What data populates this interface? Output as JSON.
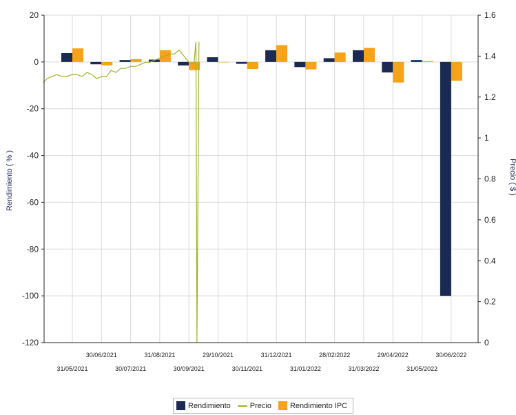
{
  "chart_data": {
    "type": "bar",
    "categories": [
      "31/05/2021",
      "30/06/2021",
      "30/07/2021",
      "31/08/2021",
      "30/09/2021",
      "29/10/2021",
      "30/11/2021",
      "31/12/2021",
      "31/01/2022",
      "28/02/2022",
      "31/03/2022",
      "29/04/2022",
      "31/05/2022",
      "30/06/2022"
    ],
    "series": [
      {
        "name": "Rendimiento",
        "axis": "left",
        "color": "#1b2a52",
        "values": [
          3.8,
          -1.0,
          0.8,
          1.0,
          -1.5,
          2.0,
          -0.8,
          5.0,
          -2.2,
          1.6,
          5.0,
          -4.5,
          0.8,
          -100
        ]
      },
      {
        "name": "Rendimiento IPC",
        "axis": "left",
        "color": "#f7a21b",
        "values": [
          5.8,
          -1.5,
          1.2,
          5.0,
          -3.5,
          -0.2,
          -3.0,
          7.2,
          -3.2,
          4.0,
          6.0,
          -8.8,
          0.4,
          -8.0
        ]
      },
      {
        "name": "Precio",
        "type": "line",
        "axis": "right",
        "color": "#9bb524",
        "x": [
          "01/05/2021",
          "05/05/2021",
          "10/05/2021",
          "15/05/2021",
          "20/05/2021",
          "25/05/2021",
          "31/05/2021",
          "05/06/2021",
          "10/06/2021",
          "15/06/2021",
          "20/06/2021",
          "25/06/2021",
          "30/06/2021",
          "05/07/2021",
          "10/07/2021",
          "15/07/2021",
          "20/07/2021",
          "25/07/2021",
          "30/07/2021",
          "05/08/2021",
          "10/08/2021",
          "15/08/2021",
          "20/08/2021",
          "25/08/2021",
          "31/08/2021",
          "05/09/2021",
          "10/09/2021",
          "15/09/2021",
          "20/09/2021",
          "25/09/2021",
          "30/09/2021",
          "05/10/2021",
          "07/10/2021",
          "08/10/2021",
          "10/10/2021"
        ],
        "values": [
          1.27,
          1.29,
          1.3,
          1.31,
          1.3,
          1.3,
          1.31,
          1.31,
          1.3,
          1.32,
          1.31,
          1.29,
          1.3,
          1.3,
          1.33,
          1.32,
          1.34,
          1.34,
          1.35,
          1.35,
          1.36,
          1.37,
          1.37,
          1.38,
          1.39,
          1.4,
          1.41,
          1.41,
          1.43,
          1.4,
          1.37,
          1.36,
          1.47,
          0.0,
          1.47
        ]
      }
    ],
    "left_axis": {
      "label": "Rendimiento  ( % )",
      "ylim": [
        -120,
        20
      ],
      "ticks": [
        20,
        0,
        -20,
        -40,
        -60,
        -80,
        -100,
        -120
      ]
    },
    "right_axis": {
      "label": "Precio  ( $ )",
      "ylim": [
        0,
        1.6
      ],
      "ticks": [
        "1.6",
        "1.4",
        "1.2",
        "1",
        "0.8",
        "0.6",
        "0.4",
        "0.2",
        "0"
      ]
    },
    "xlabel": "",
    "grid": true,
    "legend": {
      "placement": "bottom",
      "entries": [
        "Rendimiento",
        "Precio",
        "Rendimiento IPC"
      ]
    }
  }
}
